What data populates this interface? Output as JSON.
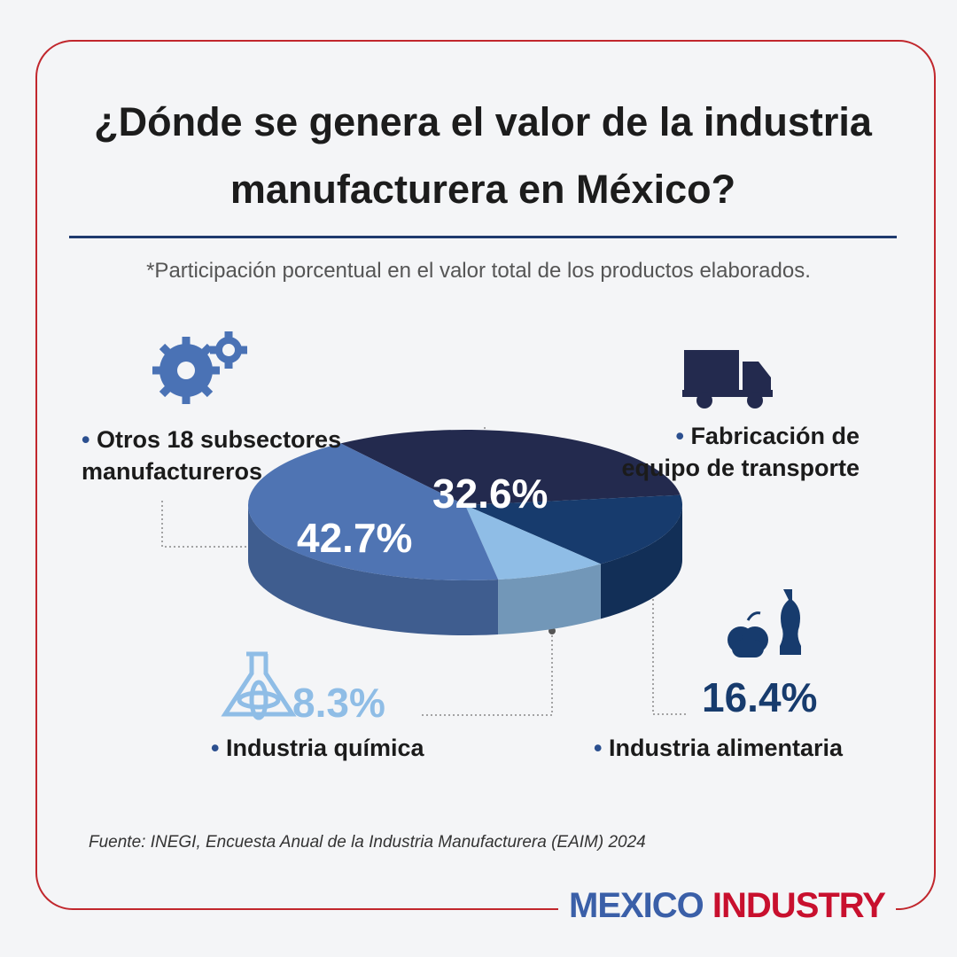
{
  "chart_data": {
    "type": "pie",
    "title": "¿Dónde se genera el valor de la industria manufacturera en México?",
    "subtitle": "*Participación porcentual en el valor total de los productos elaborados.",
    "categories": [
      "Fabricación de equipo de transporte",
      "Industria alimentaria",
      "Industria química",
      "Otros 18 subsectores manufactureros"
    ],
    "values": [
      32.6,
      16.4,
      8.3,
      42.7
    ],
    "value_labels": [
      "32.6%",
      "16.4%",
      "8.3%",
      "42.7%"
    ],
    "colors": [
      "#232a4e",
      "#173b6d",
      "#8fbde6",
      "#4f74b3"
    ],
    "source": "Fuente: INEGI, Encuesta Anual de la Industria Manufacturera (EAIM) 2024",
    "brand": [
      "MEXICO",
      "INDUSTRY"
    ]
  }
}
